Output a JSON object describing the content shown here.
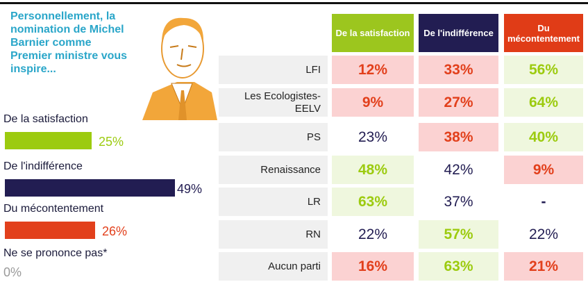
{
  "question": "Personnellement, la nomination de Michel Barnier comme Premier ministre vous inspire...",
  "chart_data": {
    "type": "hbar",
    "categories": [
      "De la satisfaction",
      "De l'indifférence",
      "Du mécontentement",
      "Ne se prononce pas*"
    ],
    "values": [
      25,
      49,
      26,
      0
    ],
    "value_labels": [
      "25%",
      "49%",
      "26%",
      "0%"
    ],
    "colors": [
      "#9ccb0f",
      "#221d52",
      "#e2401c",
      "#9a9a9a"
    ],
    "label_colors": [
      "#9ccb0f",
      "#221d52",
      "#e2401c",
      "#9a9a9a"
    ]
  },
  "table": {
    "headers": [
      {
        "text": "De la satisfaction",
        "color": "#9cc61e"
      },
      {
        "text": "De l'indifférence",
        "color": "#221d52"
      },
      {
        "text": "Du mécontentement",
        "color": "#e03c17"
      }
    ],
    "rows": [
      {
        "party": "LFI",
        "cells": [
          {
            "text": "12%",
            "color": "#e2401c",
            "bg": "#fbd2d2"
          },
          {
            "text": "33%",
            "color": "#e2401c",
            "bg": "#fbd2d2"
          },
          {
            "text": "56%",
            "color": "#9ccb0f",
            "bg": "#eff7de"
          }
        ]
      },
      {
        "party": "Les Ecologistes-EELV",
        "cells": [
          {
            "text": "9%",
            "color": "#e2401c",
            "bg": "#fbd2d2"
          },
          {
            "text": "27%",
            "color": "#e2401c",
            "bg": "#fbd2d2"
          },
          {
            "text": "64%",
            "color": "#9ccb0f",
            "bg": "#eff7de"
          }
        ]
      },
      {
        "party": "PS",
        "cells": [
          {
            "text": "23%",
            "color": "#221d52",
            "bg": "#ffffff"
          },
          {
            "text": "38%",
            "color": "#e2401c",
            "bg": "#fbd2d2"
          },
          {
            "text": "40%",
            "color": "#9ccb0f",
            "bg": "#eff7de"
          }
        ]
      },
      {
        "party": "Renaissance",
        "cells": [
          {
            "text": "48%",
            "color": "#9ccb0f",
            "bg": "#eff7de"
          },
          {
            "text": "42%",
            "color": "#221d52",
            "bg": "#ffffff"
          },
          {
            "text": "9%",
            "color": "#e2401c",
            "bg": "#fbd2d2"
          }
        ]
      },
      {
        "party": "LR",
        "cells": [
          {
            "text": "63%",
            "color": "#9ccb0f",
            "bg": "#eff7de"
          },
          {
            "text": "37%",
            "color": "#221d52",
            "bg": "#ffffff"
          },
          {
            "text": "-",
            "color": "#221d52",
            "bg": "#ffffff"
          }
        ]
      },
      {
        "party": "RN",
        "cells": [
          {
            "text": "22%",
            "color": "#221d52",
            "bg": "#ffffff"
          },
          {
            "text": "57%",
            "color": "#9ccb0f",
            "bg": "#eff7de"
          },
          {
            "text": "22%",
            "color": "#221d52",
            "bg": "#ffffff"
          }
        ]
      },
      {
        "party": "Aucun parti",
        "cells": [
          {
            "text": "16%",
            "color": "#e2401c",
            "bg": "#fbd2d2"
          },
          {
            "text": "63%",
            "color": "#9ccb0f",
            "bg": "#eff7de"
          },
          {
            "text": "21%",
            "color": "#e2401c",
            "bg": "#fbd2d2"
          }
        ]
      }
    ]
  }
}
